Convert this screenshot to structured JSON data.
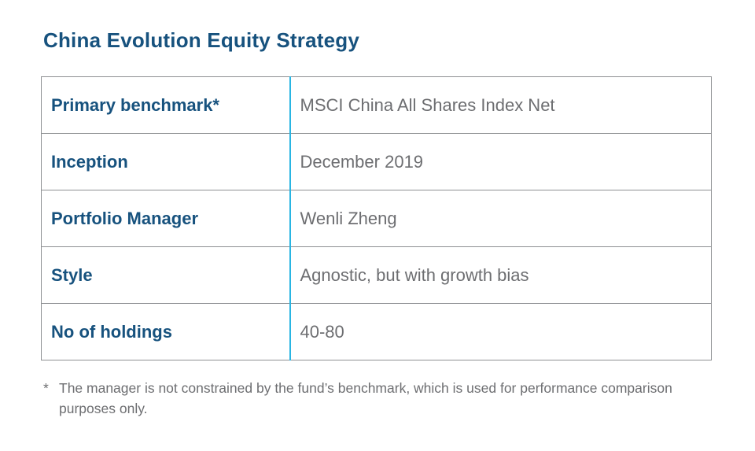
{
  "page": {
    "title": "China Evolution Equity Strategy"
  },
  "table": {
    "rows": [
      {
        "label": "Primary benchmark*",
        "value": "MSCI China All Shares Index Net"
      },
      {
        "label": "Inception",
        "value": "December 2019"
      },
      {
        "label": "Portfolio Manager",
        "value": "Wenli Zheng"
      },
      {
        "label": "Style",
        "value": "Agnostic, but with growth bias"
      },
      {
        "label": "No of holdings",
        "value": "40-80"
      }
    ]
  },
  "footnote": {
    "marker": "*",
    "text": "The manager is not constrained by the fund’s benchmark, which is used for performance comparison purposes only."
  },
  "colors": {
    "heading_blue": "#17527e",
    "divider_cyan": "#29b5e3",
    "border_gray": "#8e9093",
    "body_gray": "#6d6e71"
  }
}
